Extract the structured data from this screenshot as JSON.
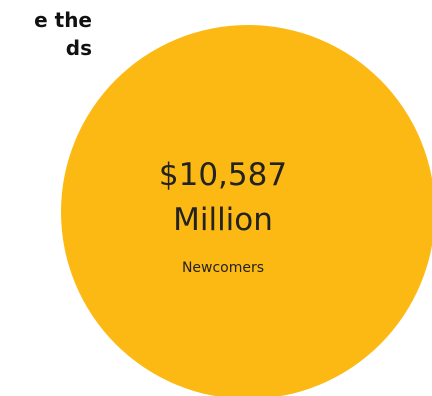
{
  "heading": {
    "lines": [
      "e the",
      "ds"
    ]
  },
  "chart_data": {
    "type": "bubble",
    "title": "",
    "series": [
      {
        "name": "",
        "values": [
          {
            "category": "Newcomers",
            "value": 10587,
            "value_text": "$10,587",
            "unit_text": "Million",
            "color": "#FDB913"
          }
        ]
      }
    ]
  }
}
